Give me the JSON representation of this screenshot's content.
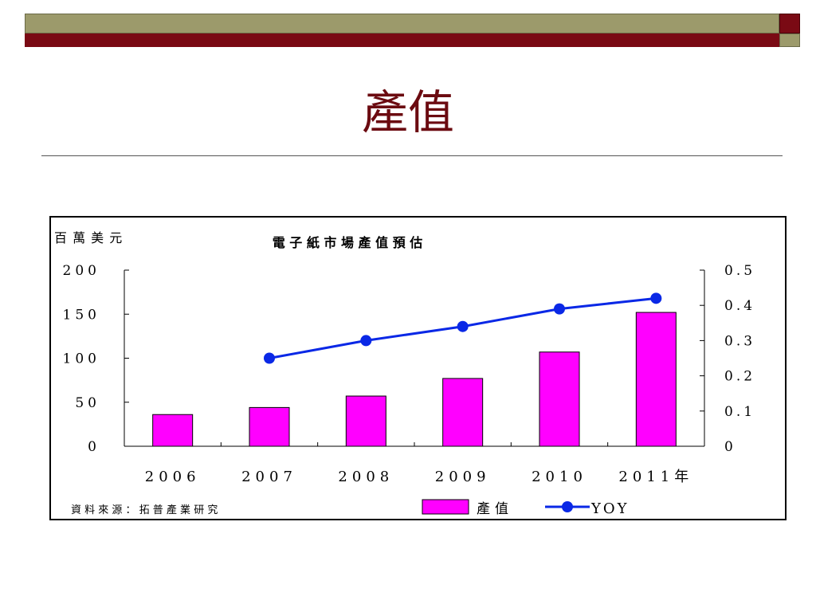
{
  "slide": {
    "title": "產值"
  },
  "colors": {
    "header_olive": "#9c9a6b",
    "header_maroon": "#7a0a14",
    "title_color": "#6b0a10",
    "bar_color": "#ff00ff",
    "line_color": "#0a28e6"
  },
  "chart_data": {
    "type": "bar",
    "title": "電 子 紙 市 場 產 值 預 估",
    "ylabel": "百 萬 美 元",
    "categories": [
      "2006",
      "2007",
      "2008",
      "2009",
      "2010",
      "2011年"
    ],
    "ylim": [
      0,
      200
    ],
    "yticks": [
      "200",
      "150",
      "100",
      "50",
      "0"
    ],
    "y2lim": [
      0,
      0.5
    ],
    "y2ticks": [
      "0.5",
      "0.4",
      "0.3",
      "0.2",
      "0.1",
      "0"
    ],
    "series": [
      {
        "name": "產值",
        "type": "bar",
        "axis": "left",
        "values": [
          36,
          44,
          57,
          77,
          107,
          152
        ]
      },
      {
        "name": "YOY",
        "type": "line",
        "axis": "right",
        "values": [
          null,
          0.25,
          0.3,
          0.34,
          0.39,
          0.42
        ]
      }
    ],
    "source": "資 料 來 源 ： 拓 普 產 業 研 究",
    "legend_position": "bottom-right",
    "grid": false
  }
}
